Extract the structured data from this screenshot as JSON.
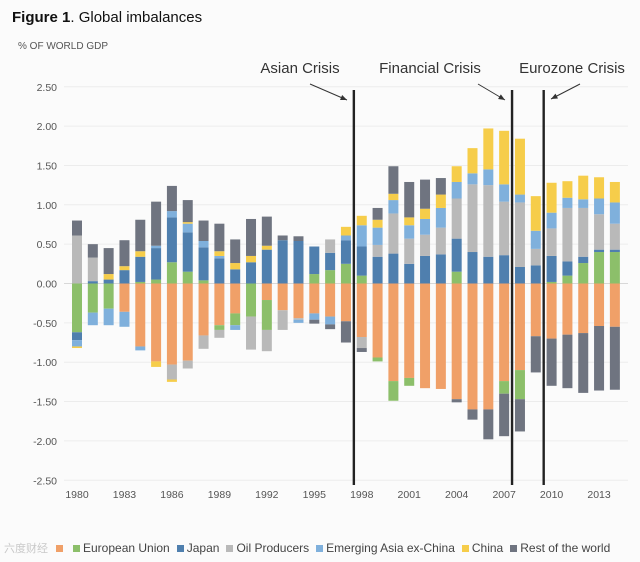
{
  "figure_label": "Figure 1",
  "figure_title": ". Global imbalances",
  "watermark": "六度财经",
  "chart_data": {
    "type": "bar",
    "stacked": true,
    "title": "Figure 1. Global imbalances",
    "ylabel": "% OF WORLD GDP",
    "xlabel": "",
    "ylim": [
      -2.5,
      2.5
    ],
    "yticks": [
      "2.50",
      "2.00",
      "1.50",
      "1.00",
      "0.50",
      "0.00",
      "-0.50",
      "-1.00",
      "-1.50",
      "-2.00",
      "-2.50"
    ],
    "ytick_values": [
      2.5,
      2,
      1.5,
      1,
      0.5,
      0,
      -0.5,
      -1,
      -1.5,
      -2,
      -2.5
    ],
    "xticks": [
      "1980",
      "1983",
      "1986",
      "1989",
      "1992",
      "1995",
      "1998",
      "2001",
      "2004",
      "2007",
      "2010",
      "2013"
    ],
    "grid": true,
    "legend_position": "bottom",
    "categories": [
      1980,
      1981,
      1982,
      1983,
      1984,
      1985,
      1986,
      1987,
      1988,
      1989,
      1990,
      1991,
      1992,
      1993,
      1994,
      1995,
      1996,
      1997,
      1998,
      1999,
      2000,
      2001,
      2002,
      2003,
      2004,
      2005,
      2006,
      2007,
      2008,
      2009,
      2010,
      2011,
      2012,
      2013,
      2014
    ],
    "series": [
      {
        "name": "",
        "color": "#f0a068",
        "values": [
          0,
          0,
          0,
          -0.36,
          -0.8,
          -0.99,
          -1.03,
          -0.98,
          -0.66,
          -0.53,
          -0.38,
          0,
          -0.21,
          -0.34,
          -0.44,
          -0.38,
          -0.42,
          -0.48,
          -0.68,
          -0.94,
          -1.24,
          -1.2,
          -1.33,
          -1.34,
          -1.47,
          -1.6,
          -1.6,
          -1.24,
          -1.1,
          -0.67,
          -0.7,
          -0.65,
          -0.63,
          -0.54,
          -0.55
        ]
      },
      {
        "name": "European Union",
        "color": "#8cbf6a",
        "values": [
          -0.62,
          -0.37,
          -0.32,
          0,
          0.02,
          0.05,
          0.27,
          0.15,
          0.04,
          -0.06,
          -0.15,
          -0.42,
          -0.38,
          0,
          0,
          0.12,
          0.17,
          0.25,
          0.1,
          -0.05,
          -0.25,
          -0.1,
          0,
          0,
          0.15,
          0,
          0,
          -0.16,
          -0.37,
          0,
          0.02,
          0.1,
          0.26,
          0.4,
          0.4
        ]
      },
      {
        "name": "Japan",
        "color": "#4f7fae",
        "values": [
          -0.1,
          0.03,
          0.05,
          0.17,
          0.32,
          0.4,
          0.57,
          0.5,
          0.42,
          0.32,
          0.18,
          0.27,
          0.43,
          0.55,
          0.54,
          0.35,
          0.22,
          0.3,
          0.37,
          0.34,
          0.38,
          0.25,
          0.35,
          0.37,
          0.42,
          0.4,
          0.34,
          0.36,
          0.21,
          0.23,
          0.33,
          0.18,
          0.08,
          0.03,
          0.03
        ]
      },
      {
        "name": "Oil Producers",
        "color": "#b9b9b9",
        "values": [
          0.61,
          0.3,
          0,
          0,
          0,
          0,
          -0.19,
          -0.1,
          -0.17,
          -0.1,
          0,
          -0.42,
          -0.27,
          -0.25,
          -0.02,
          0,
          0.17,
          0,
          -0.14,
          0.15,
          0.51,
          0.32,
          0.27,
          0.34,
          0.51,
          0.86,
          0.91,
          0.68,
          0.82,
          0.21,
          0.35,
          0.68,
          0.62,
          0.45,
          0.33
        ]
      },
      {
        "name": "Emerging Asia ex-China",
        "color": "#7fb0dc",
        "values": [
          -0.08,
          -0.16,
          -0.21,
          -0.19,
          -0.05,
          0.03,
          0.08,
          0.11,
          0.08,
          0.03,
          -0.06,
          0,
          0,
          0,
          -0.04,
          -0.08,
          -0.1,
          0.06,
          0.27,
          0.22,
          0.17,
          0.17,
          0.2,
          0.25,
          0.21,
          0.14,
          0.2,
          0.22,
          0.1,
          0.23,
          0.2,
          0.13,
          0.11,
          0.2,
          0.27
        ]
      },
      {
        "name": "China",
        "color": "#f6cd4a",
        "values": [
          -0.02,
          0,
          0.07,
          0.05,
          0.07,
          -0.07,
          -0.03,
          0.02,
          0,
          0.06,
          0.08,
          0.08,
          0.05,
          0,
          0,
          0,
          0,
          0.11,
          0.12,
          0.1,
          0.08,
          0.1,
          0.13,
          0.17,
          0.2,
          0.32,
          0.52,
          0.68,
          0.71,
          0.44,
          0.38,
          0.21,
          0.3,
          0.27,
          0.26
        ]
      },
      {
        "name": "Rest of the world",
        "color": "#6f7480",
        "values": [
          0.19,
          0.17,
          0.33,
          0.33,
          0.4,
          0.56,
          0.32,
          0.28,
          0.26,
          0.35,
          0.3,
          0.47,
          0.37,
          0.06,
          0.06,
          -0.05,
          -0.06,
          -0.27,
          -0.05,
          0.15,
          0.35,
          0.45,
          0.37,
          0.21,
          -0.04,
          -0.13,
          -0.38,
          -0.54,
          -0.41,
          -0.46,
          -0.6,
          -0.68,
          -0.76,
          -0.82,
          -0.8
        ]
      }
    ],
    "annotations": [
      {
        "text": "Asian Crisis",
        "at_year": 1997.5
      },
      {
        "text": "Financial Crisis",
        "at_year": 2007.5
      },
      {
        "text": "Eurozone Crisis",
        "at_year": 2009.5
      }
    ]
  }
}
